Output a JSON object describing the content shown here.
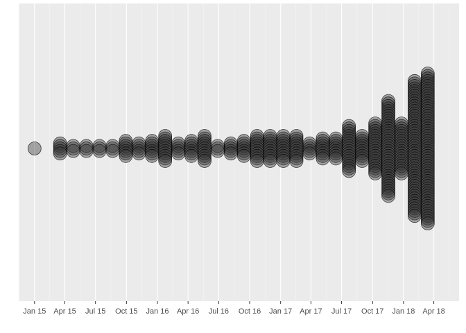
{
  "chart_data": {
    "type": "scatter",
    "title": "",
    "xlabel": "",
    "ylabel": "",
    "grid": true,
    "legend": "none",
    "x_tick_labels": [
      "Jan 15",
      "Apr 15",
      "Jul 15",
      "Oct 15",
      "Jan 16",
      "Apr 16",
      "Jul 16",
      "Oct 16",
      "Jan 17",
      "Apr 17",
      "Jul 17",
      "Oct 17",
      "Jan 18",
      "Apr 18"
    ],
    "x_ticks": [
      "2015-01-01",
      "2015-04-01",
      "2015-07-01",
      "2015-10-01",
      "2016-01-01",
      "2016-04-01",
      "2016-07-01",
      "2016-10-01",
      "2017-01-01",
      "2017-04-01",
      "2017-07-01",
      "2017-10-01",
      "2018-01-01",
      "2018-04-01"
    ],
    "xlim": [
      "2014-11-15",
      "2018-06-15"
    ],
    "y_axis_visible": false,
    "columns": [
      {
        "date": "2015-01-01",
        "count": 1
      },
      {
        "date": "2015-03-18",
        "count": 5
      },
      {
        "date": "2015-04-26",
        "count": 3
      },
      {
        "date": "2015-06-04",
        "count": 3
      },
      {
        "date": "2015-07-13",
        "count": 3
      },
      {
        "date": "2015-08-21",
        "count": 3
      },
      {
        "date": "2015-09-29",
        "count": 7
      },
      {
        "date": "2015-11-07",
        "count": 5
      },
      {
        "date": "2015-12-16",
        "count": 7
      },
      {
        "date": "2016-01-24",
        "count": 11
      },
      {
        "date": "2016-03-03",
        "count": 5
      },
      {
        "date": "2016-04-11",
        "count": 7
      },
      {
        "date": "2016-05-20",
        "count": 11
      },
      {
        "date": "2016-06-28",
        "count": 3
      },
      {
        "date": "2016-08-06",
        "count": 5
      },
      {
        "date": "2016-09-14",
        "count": 7
      },
      {
        "date": "2016-10-23",
        "count": 11
      },
      {
        "date": "2016-12-01",
        "count": 11
      },
      {
        "date": "2017-01-09",
        "count": 11
      },
      {
        "date": "2017-02-17",
        "count": 11
      },
      {
        "date": "2017-03-28",
        "count": 5
      },
      {
        "date": "2017-05-06",
        "count": 9
      },
      {
        "date": "2017-06-14",
        "count": 9
      },
      {
        "date": "2017-07-23",
        "count": 19
      },
      {
        "date": "2017-08-31",
        "count": 11
      },
      {
        "date": "2017-10-09",
        "count": 21
      },
      {
        "date": "2017-11-17",
        "count": 39
      },
      {
        "date": "2017-12-26",
        "count": 21
      },
      {
        "date": "2018-02-03",
        "count": 55
      },
      {
        "date": "2018-03-14",
        "count": 61
      }
    ],
    "point_fill": "#333333",
    "point_stroke": "#000000",
    "point_alpha": 0.4,
    "panel_bg": "#ebebeb",
    "grid_major_color": "#ffffff",
    "grid_minor_color": "#f5f5f5",
    "tick_label_color": "#4d4d4d"
  }
}
